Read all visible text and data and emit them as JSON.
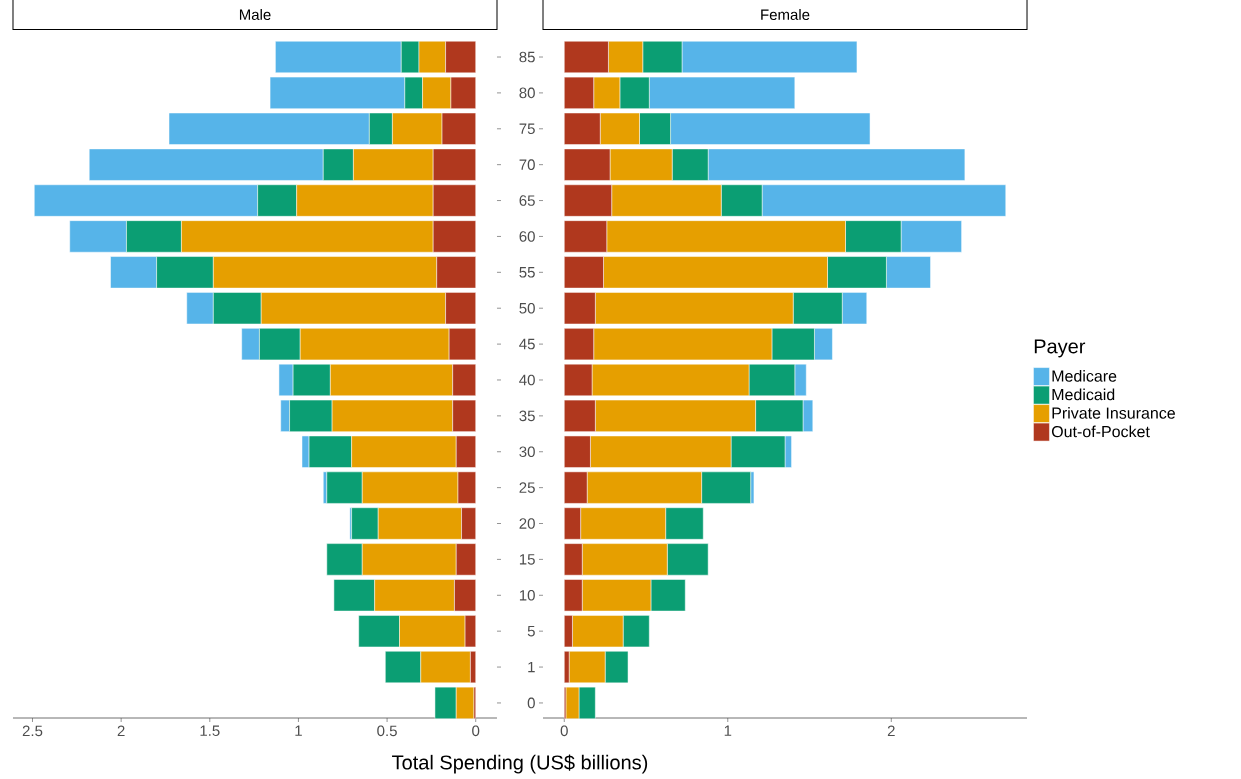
{
  "chart_data": [
    {
      "type": "bar",
      "title": "Male",
      "orientation": "horizontal",
      "stacked": true,
      "xlabel": "Total Spending (US$ billions)",
      "tick_labels": "x",
      "legend": "right",
      "legend_title": "Payer",
      "categories": [
        "85",
        "80",
        "75",
        "70",
        "65",
        "60",
        "55",
        "50",
        "45",
        "40",
        "35",
        "30",
        "25",
        "20",
        "15",
        "10",
        "5",
        "1",
        "0"
      ],
      "xlim": [
        2.61,
        -0.12
      ],
      "xticks": [
        0,
        0.5,
        1,
        1.5,
        2,
        2.5
      ],
      "series": [
        {
          "name": "Out-of-Pocket",
          "color": "#b0381e",
          "values": [
            0.17,
            0.14,
            0.19,
            0.24,
            0.24,
            0.24,
            0.22,
            0.17,
            0.15,
            0.13,
            0.13,
            0.11,
            0.1,
            0.08,
            0.11,
            0.12,
            0.06,
            0.03,
            0.01
          ]
        },
        {
          "name": "Private Insurance",
          "color": "#e69f00",
          "values": [
            0.15,
            0.16,
            0.28,
            0.45,
            0.77,
            1.42,
            1.26,
            1.04,
            0.84,
            0.69,
            0.68,
            0.59,
            0.54,
            0.47,
            0.53,
            0.45,
            0.37,
            0.28,
            0.1
          ]
        },
        {
          "name": "Medicaid",
          "color": "#0b9e73",
          "values": [
            0.1,
            0.1,
            0.13,
            0.17,
            0.22,
            0.31,
            0.32,
            0.27,
            0.23,
            0.21,
            0.24,
            0.24,
            0.2,
            0.15,
            0.2,
            0.23,
            0.23,
            0.2,
            0.12
          ]
        },
        {
          "name": "Medicare",
          "color": "#56b4e9",
          "values": [
            0.71,
            0.76,
            1.13,
            1.32,
            1.26,
            0.32,
            0.26,
            0.15,
            0.1,
            0.08,
            0.05,
            0.04,
            0.02,
            0.01,
            0,
            0,
            0,
            0,
            0
          ]
        }
      ]
    },
    {
      "type": "bar",
      "title": "Female",
      "orientation": "horizontal",
      "stacked": true,
      "categories": [
        "85",
        "80",
        "75",
        "70",
        "65",
        "60",
        "55",
        "50",
        "45",
        "40",
        "35",
        "30",
        "25",
        "20",
        "15",
        "10",
        "5",
        "1",
        "0"
      ],
      "xlim": [
        -0.13,
        2.83
      ],
      "xticks": [
        0,
        1,
        2
      ],
      "series": [
        {
          "color": "#b0381e",
          "values": [
            0.27,
            0.18,
            0.22,
            0.28,
            0.29,
            0.26,
            0.24,
            0.19,
            0.18,
            0.17,
            0.19,
            0.16,
            0.14,
            0.1,
            0.11,
            0.11,
            0.05,
            0.03,
            0.01
          ]
        },
        {
          "color": "#e69f00",
          "values": [
            0.21,
            0.16,
            0.24,
            0.38,
            0.67,
            1.46,
            1.37,
            1.21,
            1.09,
            0.96,
            0.98,
            0.86,
            0.7,
            0.52,
            0.52,
            0.42,
            0.31,
            0.22,
            0.08
          ]
        },
        {
          "color": "#0b9e73",
          "values": [
            0.24,
            0.18,
            0.19,
            0.22,
            0.25,
            0.34,
            0.36,
            0.3,
            0.26,
            0.28,
            0.29,
            0.33,
            0.3,
            0.23,
            0.25,
            0.21,
            0.16,
            0.14,
            0.1
          ]
        },
        {
          "color": "#56b4e9",
          "values": [
            1.07,
            0.89,
            1.22,
            1.57,
            1.49,
            0.37,
            0.27,
            0.15,
            0.11,
            0.07,
            0.06,
            0.04,
            0.02,
            0,
            0,
            0,
            0,
            0,
            0
          ]
        }
      ]
    }
  ]
}
